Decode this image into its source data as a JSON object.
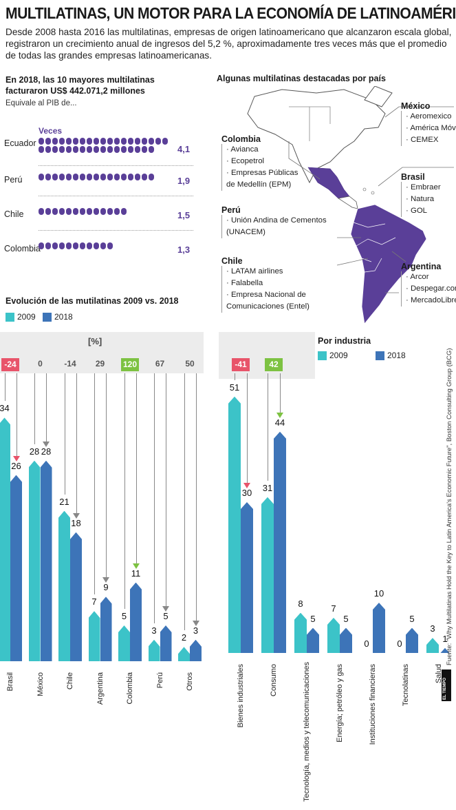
{
  "header": {
    "title": "MULTILATINAS, UN MOTOR PARA LA ECONOMÍA DE LATINOAMÉRICA",
    "intro": "Desde 2008 hasta 2016 las multilatinas, empresas de origen latinoamericano que alcanzaron escala global, registraron un crecimiento anual de ingresos del 5,2 %, aproximadamente tres veces más que el promedio de todas las grandes empresas latinoamericanas."
  },
  "pib": {
    "heading": "En 2018, las 10 mayores multilatinas facturaron US$ 442.071,2 millones",
    "sub": "Equivale al PIB de...",
    "veces_label": "Veces",
    "rows": [
      {
        "country": "Ecuador",
        "value": "4,1",
        "times": 4.1
      },
      {
        "country": "Perú",
        "value": "1,9",
        "times": 1.9
      },
      {
        "country": "Chile",
        "value": "1,5",
        "times": 1.5
      },
      {
        "country": "Colombia",
        "value": "1,3",
        "times": 1.3
      }
    ]
  },
  "map": {
    "heading": "Algunas multilatinas destacadas por país",
    "countries": [
      {
        "name": "Colombia",
        "companies": [
          "· Avianca",
          "· Ecopetrol",
          "· Empresas Públicas",
          "  de Medellín (EPM)"
        ]
      },
      {
        "name": "Perú",
        "companies": [
          "· Unión Andina de Cementos",
          "  (UNACEM)"
        ]
      },
      {
        "name": "Chile",
        "companies": [
          "· LATAM airlines",
          "· Falabella",
          "· Empresa Nacional de",
          "  Comunicaciones (Entel)"
        ]
      },
      {
        "name": "México",
        "companies": [
          "· Aeromexico",
          "· América Móvil",
          "· CEMEX"
        ]
      },
      {
        "name": "Brasil",
        "companies": [
          "· Embraer",
          "· Natura",
          "· GOL"
        ]
      },
      {
        "name": "Argentina",
        "companies": [
          "· Arcor",
          "· Despegar.com",
          "· MercadoLibre"
        ]
      }
    ]
  },
  "evolution": {
    "heading": "Evolución de las mutilatinas 2009 vs. 2018",
    "legend": [
      "2009",
      "2018"
    ],
    "pct_label": "[%]"
  },
  "industry": {
    "heading": "Por industria",
    "legend": [
      "2009",
      "2018"
    ]
  },
  "colors": {
    "c2009": "#3cc3c8",
    "c2018": "#3d74b8",
    "purple": "#5a3f98",
    "neg": "#e8546a",
    "pos": "#7dc242"
  },
  "source": "Fuente: \"Why Multilatinas Hold the Key to Latin America's Economic Future\", Boston Consulting Group (BCG)",
  "logo": "EL TIEMPO",
  "chart_data": [
    {
      "type": "bar",
      "title": "Evolución de las mutilatinas 2009 vs. 2018",
      "categories": [
        "Brasil",
        "México",
        "Chile",
        "Argentina",
        "Colombia",
        "Perú",
        "Otros"
      ],
      "series": [
        {
          "name": "2009",
          "values": [
            34,
            28,
            21,
            7,
            5,
            3,
            2
          ]
        },
        {
          "name": "2018",
          "values": [
            26,
            28,
            18,
            9,
            11,
            5,
            3
          ]
        }
      ],
      "change_pct": [
        "-24",
        "0",
        "-14",
        "29",
        "120",
        "67",
        "50"
      ],
      "ylim": [
        0,
        40
      ]
    },
    {
      "type": "bar",
      "title": "Por industria",
      "categories": [
        "Bienes industriales",
        "Consumo",
        "Tecnología, medios y telecomunicaciones",
        "Energía; petróleo y gas",
        "Instituciones financieras",
        "Tecnolatinas",
        "Salud"
      ],
      "series": [
        {
          "name": "2009",
          "values": [
            51,
            31,
            8,
            7,
            0,
            0,
            3
          ]
        },
        {
          "name": "2018",
          "values": [
            30,
            44,
            5,
            5,
            10,
            5,
            1
          ]
        }
      ],
      "change_pct": [
        "-41",
        "42",
        "",
        "",
        "",
        "",
        ""
      ],
      "ylim": [
        0,
        60
      ]
    }
  ]
}
